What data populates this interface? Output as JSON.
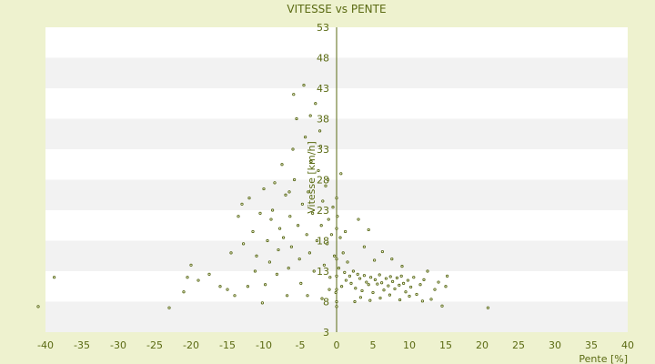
{
  "chart_data": {
    "type": "scatter",
    "title": "VITESSE vs PENTE",
    "xlabel": "Pente [%]",
    "ylabel": "Vitesse [km/h]",
    "xlim": [
      -40,
      40
    ],
    "ylim": [
      3,
      53
    ],
    "xticks": [
      "-40",
      "-35",
      "-30",
      "-25",
      "-20",
      "-15",
      "-10",
      "-5",
      "0",
      "5",
      "10",
      "15",
      "20",
      "25",
      "30",
      "35",
      "40"
    ],
    "yticks": [
      "3",
      "8",
      "13",
      "18",
      "23",
      "28",
      "33",
      "38",
      "43",
      "48",
      "53"
    ],
    "grid": "alternating horizontal bands",
    "colors": {
      "point_edge": "#4f6010",
      "text": "#5a6a12",
      "background": "#eef2cf",
      "band_light": "#ffffff",
      "band_dark": "#f2f2f2"
    },
    "points": [
      [
        -41,
        7.2
      ],
      [
        -38.8,
        12.0
      ],
      [
        -23,
        7.0
      ],
      [
        -21,
        9.6
      ],
      [
        -20.5,
        12.0
      ],
      [
        -20,
        14.0
      ],
      [
        -19,
        11.5
      ],
      [
        -17.5,
        12.5
      ],
      [
        -16,
        10.5
      ],
      [
        -15,
        10.0
      ],
      [
        -14.5,
        16.0
      ],
      [
        -14,
        9.0
      ],
      [
        -13.5,
        22.0
      ],
      [
        -13,
        24.0
      ],
      [
        -12.8,
        17.5
      ],
      [
        -12.2,
        10.5
      ],
      [
        -12,
        25.0
      ],
      [
        -11.5,
        19.5
      ],
      [
        -11.2,
        13.0
      ],
      [
        -11,
        15.5
      ],
      [
        -10.5,
        22.5
      ],
      [
        -10.2,
        7.8
      ],
      [
        -10,
        26.5
      ],
      [
        -9.8,
        10.8
      ],
      [
        -9.5,
        18.0
      ],
      [
        -9.2,
        14.5
      ],
      [
        -9,
        21.5
      ],
      [
        -8.8,
        23.0
      ],
      [
        -8.5,
        27.5
      ],
      [
        -8.2,
        12.5
      ],
      [
        -8,
        16.5
      ],
      [
        -7.8,
        20.0
      ],
      [
        -7.5,
        30.5
      ],
      [
        -7.3,
        18.5
      ],
      [
        -7,
        25.5
      ],
      [
        -6.8,
        9.0
      ],
      [
        -6.6,
        13.5
      ],
      [
        -6.4,
        22.0
      ],
      [
        -6.2,
        17.0
      ],
      [
        -6,
        33.0
      ],
      [
        -5.8,
        28.0
      ],
      [
        -5.5,
        38.0
      ],
      [
        -5.3,
        20.5
      ],
      [
        -5.1,
        15.0
      ],
      [
        -4.9,
        11.0
      ],
      [
        -4.7,
        24.0
      ],
      [
        -4.5,
        43.5
      ],
      [
        -4.3,
        35.0
      ],
      [
        -4.1,
        19.0
      ],
      [
        -3.9,
        26.0
      ],
      [
        -3.7,
        16.0
      ],
      [
        -3.5,
        31.0
      ],
      [
        -3.3,
        22.5
      ],
      [
        -3.1,
        13.0
      ],
      [
        -2.9,
        40.5
      ],
      [
        -2.7,
        18.0
      ],
      [
        -2.5,
        29.5
      ],
      [
        -2.3,
        36.0
      ],
      [
        -2.1,
        20.5
      ],
      [
        -1.9,
        24.5
      ],
      [
        -1.7,
        14.0
      ],
      [
        -1.5,
        27.0
      ],
      [
        -1.3,
        17.5
      ],
      [
        -1.1,
        21.5
      ],
      [
        -0.9,
        12.0
      ],
      [
        -0.7,
        19.0
      ],
      [
        -0.5,
        23.5
      ],
      [
        -0.3,
        15.5
      ],
      [
        -0.1,
        9.5
      ],
      [
        0.1,
        22.0
      ],
      [
        0.3,
        13.5
      ],
      [
        0.5,
        18.5
      ],
      [
        0.7,
        10.5
      ],
      [
        0.9,
        16.0
      ],
      [
        1.1,
        12.8
      ],
      [
        1.3,
        11.5
      ],
      [
        1.5,
        14.5
      ],
      [
        1.8,
        12.2
      ],
      [
        2.0,
        11.0
      ],
      [
        2.3,
        13.0
      ],
      [
        2.6,
        10.2
      ],
      [
        2.9,
        12.5
      ],
      [
        3.2,
        11.8
      ],
      [
        3.5,
        9.8
      ],
      [
        3.8,
        12.3
      ],
      [
        4.1,
        11.2
      ],
      [
        4.4,
        10.8
      ],
      [
        4.7,
        12.0
      ],
      [
        5.0,
        9.5
      ],
      [
        5.3,
        11.6
      ],
      [
        5.6,
        10.9
      ],
      [
        5.9,
        12.4
      ],
      [
        6.2,
        11.1
      ],
      [
        6.5,
        9.9
      ],
      [
        6.8,
        11.8
      ],
      [
        7.1,
        10.6
      ],
      [
        7.4,
        12.1
      ],
      [
        7.7,
        11.3
      ],
      [
        8.0,
        10.1
      ],
      [
        8.3,
        11.9
      ],
      [
        8.6,
        10.7
      ],
      [
        8.9,
        12.2
      ],
      [
        9.2,
        11.0
      ],
      [
        9.5,
        9.6
      ],
      [
        9.8,
        11.5
      ],
      [
        10.2,
        10.4
      ],
      [
        10.6,
        12.0
      ],
      [
        11.0,
        9.2
      ],
      [
        11.5,
        10.8
      ],
      [
        12.0,
        11.6
      ],
      [
        12.5,
        13.0
      ],
      [
        13.0,
        8.4
      ],
      [
        13.5,
        10.0
      ],
      [
        14.0,
        11.2
      ],
      [
        14.5,
        7.3
      ],
      [
        15.0,
        10.5
      ],
      [
        15.2,
        12.2
      ],
      [
        20.8,
        7.0
      ],
      [
        0.0,
        7.2
      ],
      [
        0.0,
        8.0
      ],
      [
        0.0,
        10.0
      ],
      [
        0.0,
        12.2
      ],
      [
        0.0,
        15.0
      ],
      [
        0.0,
        20.0
      ],
      [
        0.0,
        25.0
      ],
      [
        0.6,
        29.0
      ],
      [
        1.2,
        19.5
      ],
      [
        -1.2,
        28.0
      ],
      [
        -2.2,
        33.5
      ],
      [
        -3.6,
        38.5
      ],
      [
        -5.9,
        42.0
      ],
      [
        -6.5,
        26.0
      ],
      [
        -4.0,
        9.0
      ],
      [
        -2.0,
        8.5
      ],
      [
        -1.0,
        10.0
      ],
      [
        2.5,
        8.0
      ],
      [
        3.3,
        8.7
      ],
      [
        4.6,
        8.2
      ],
      [
        6.0,
        8.6
      ],
      [
        7.3,
        9.1
      ],
      [
        8.7,
        8.3
      ],
      [
        10.0,
        8.9
      ],
      [
        11.8,
        8.1
      ],
      [
        3.0,
        21.5
      ],
      [
        3.8,
        17.0
      ],
      [
        4.4,
        19.8
      ],
      [
        5.2,
        14.8
      ],
      [
        6.3,
        16.2
      ],
      [
        7.6,
        15.0
      ],
      [
        9.0,
        13.8
      ]
    ]
  }
}
